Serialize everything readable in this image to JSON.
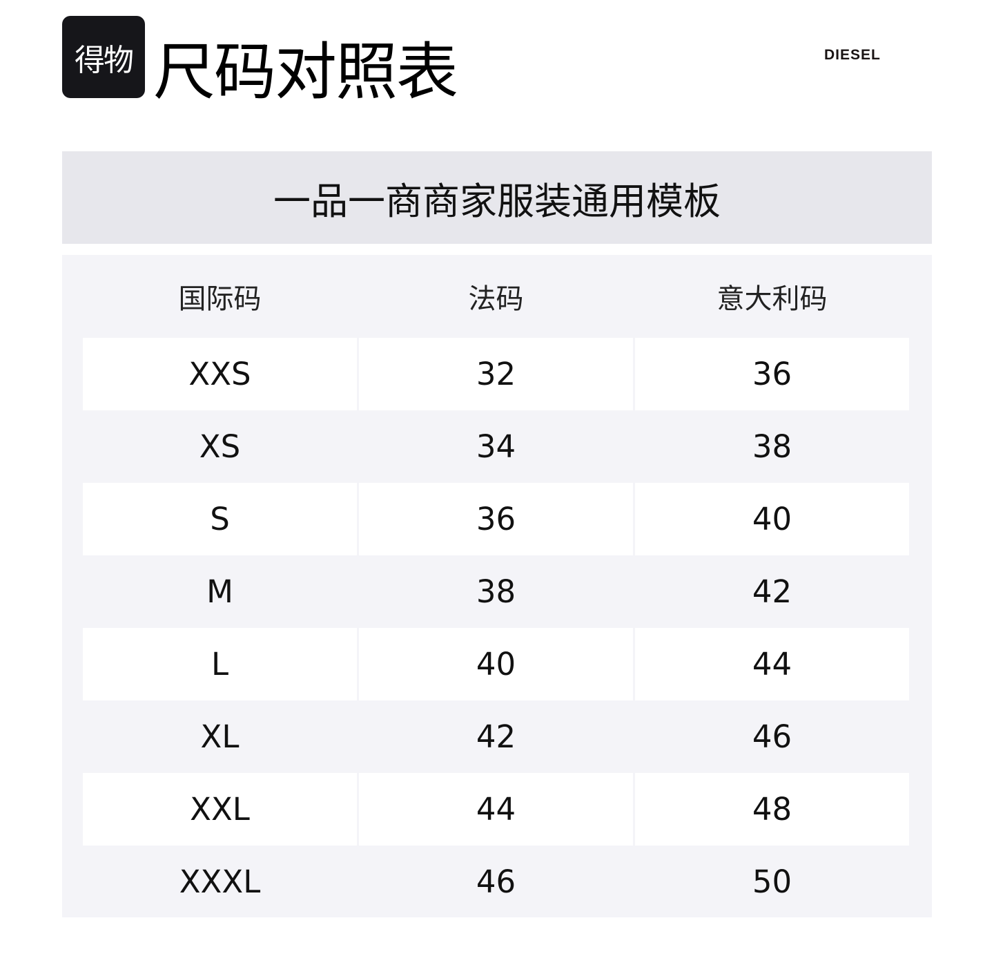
{
  "header": {
    "logo_text": "得物",
    "title": "尺码对照表",
    "brand": "DIESEL"
  },
  "banner": {
    "text": "一品一商商家服装通用模板"
  },
  "table": {
    "columns": [
      "国际码",
      "法码",
      "意大利码"
    ],
    "rows": [
      [
        "XXS",
        "32",
        "36"
      ],
      [
        "XS",
        "34",
        "38"
      ],
      [
        "S",
        "36",
        "40"
      ],
      [
        "M",
        "38",
        "42"
      ],
      [
        "L",
        "40",
        "44"
      ],
      [
        "XL",
        "42",
        "46"
      ],
      [
        "XXL",
        "44",
        "48"
      ],
      [
        "XXXL",
        "46",
        "50"
      ]
    ]
  }
}
